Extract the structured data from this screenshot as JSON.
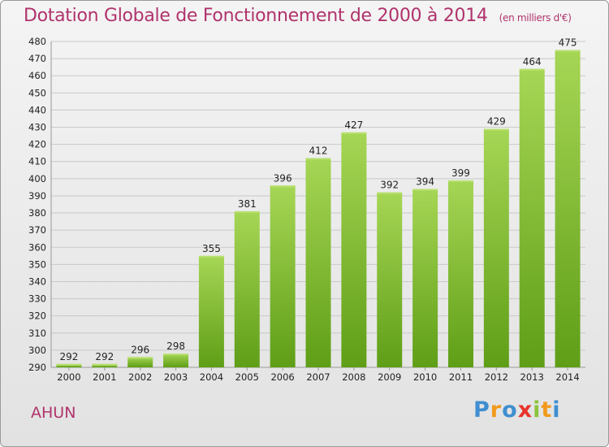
{
  "header": {
    "title": "Dotation Globale de Fonctionnement de 2000 à 2014",
    "subtitle": "(en milliers d'€)"
  },
  "footer": {
    "place": "AHUN",
    "logo_letters": [
      "P",
      "r",
      "o",
      "x",
      "i",
      "t",
      "i"
    ]
  },
  "chart_data": {
    "type": "bar",
    "categories": [
      "2000",
      "2001",
      "2002",
      "2003",
      "2004",
      "2005",
      "2006",
      "2007",
      "2008",
      "2009",
      "2010",
      "2011",
      "2012",
      "2013",
      "2014"
    ],
    "values": [
      292,
      292,
      296,
      298,
      355,
      381,
      396,
      412,
      427,
      392,
      394,
      399,
      429,
      464,
      475
    ],
    "title": "Dotation Globale de Fonctionnement de 2000 à 2014",
    "subtitle": "(en milliers d'€)",
    "xlabel": "",
    "ylabel": "",
    "ylim": [
      290,
      480
    ],
    "ytick_step": 10,
    "grid": true,
    "bar_color": "#7fbf2e",
    "bar_color_light": "#a3d653",
    "bar_color_dark": "#5e9f16"
  }
}
